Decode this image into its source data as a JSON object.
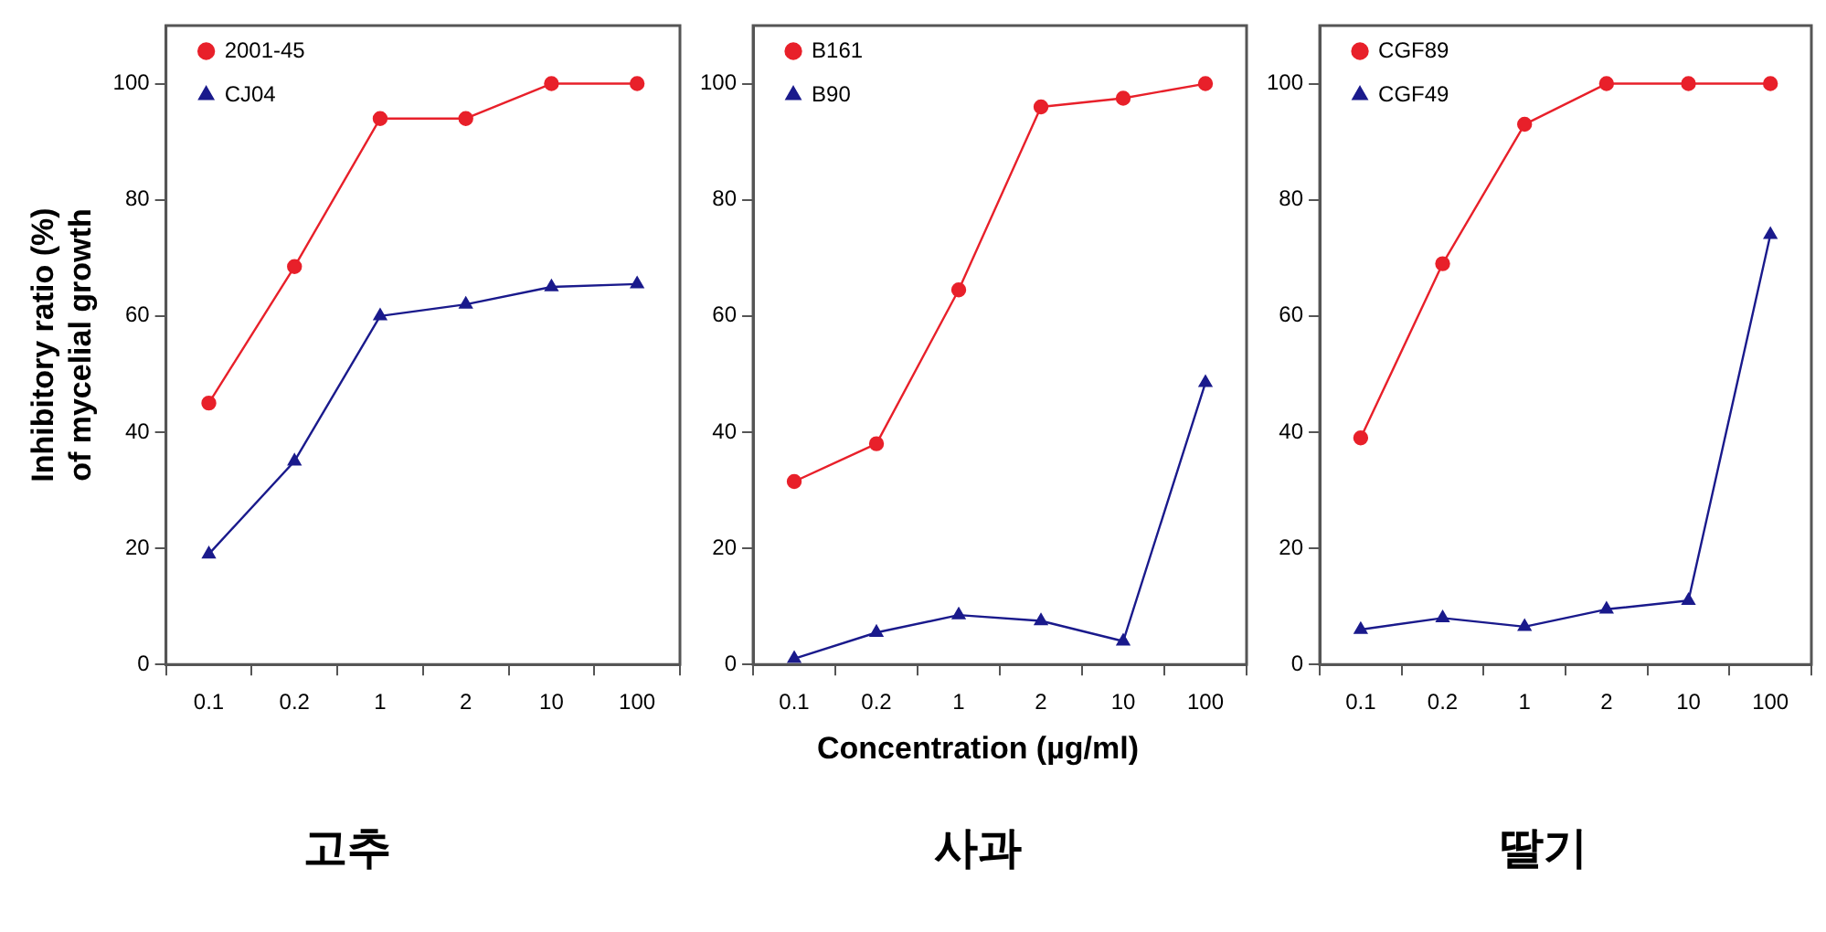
{
  "chart_data": [
    {
      "type": "line",
      "title": "고추",
      "ylabel": "Inhibitory ratio (%)\nof mycelial growth",
      "categories": [
        "0.1",
        "0.2",
        "1",
        "2",
        "10",
        "100"
      ],
      "ylim": [
        0,
        110
      ],
      "yticks": [
        0,
        20,
        40,
        60,
        80,
        100
      ],
      "grid": false,
      "legend": "top left",
      "series": [
        {
          "name": "2001-45",
          "color": "#e8202a",
          "marker": "circle",
          "values": [
            45,
            68.5,
            94,
            94,
            100,
            100
          ]
        },
        {
          "name": "CJ04",
          "color": "#1a1a8c",
          "marker": "triangle",
          "values": [
            19,
            35,
            60,
            62,
            65,
            65.5
          ]
        }
      ]
    },
    {
      "type": "line",
      "title": "사과",
      "xlabel": "Concentration (µg/ml)",
      "categories": [
        "0.1",
        "0.2",
        "1",
        "2",
        "10",
        "100"
      ],
      "ylim": [
        0,
        110
      ],
      "yticks": [
        0,
        20,
        40,
        60,
        80,
        100
      ],
      "grid": false,
      "legend": "top left",
      "series": [
        {
          "name": "B161",
          "color": "#e8202a",
          "marker": "circle",
          "values": [
            31.5,
            38,
            64.5,
            96,
            97.5,
            100
          ]
        },
        {
          "name": "B90",
          "color": "#1a1a8c",
          "marker": "triangle",
          "values": [
            1,
            5.5,
            8.5,
            7.5,
            4,
            48.5
          ]
        }
      ]
    },
    {
      "type": "line",
      "title": "딸기",
      "categories": [
        "0.1",
        "0.2",
        "1",
        "2",
        "10",
        "100"
      ],
      "ylim": [
        0,
        110
      ],
      "yticks": [
        0,
        20,
        40,
        60,
        80,
        100
      ],
      "grid": false,
      "legend": "top left",
      "series": [
        {
          "name": "CGF89",
          "color": "#e8202a",
          "marker": "circle",
          "values": [
            39,
            69,
            93,
            100,
            100,
            100
          ]
        },
        {
          "name": "CGF49",
          "color": "#1a1a8c",
          "marker": "triangle",
          "values": [
            6,
            8,
            6.5,
            9.5,
            11,
            74
          ]
        }
      ]
    }
  ]
}
